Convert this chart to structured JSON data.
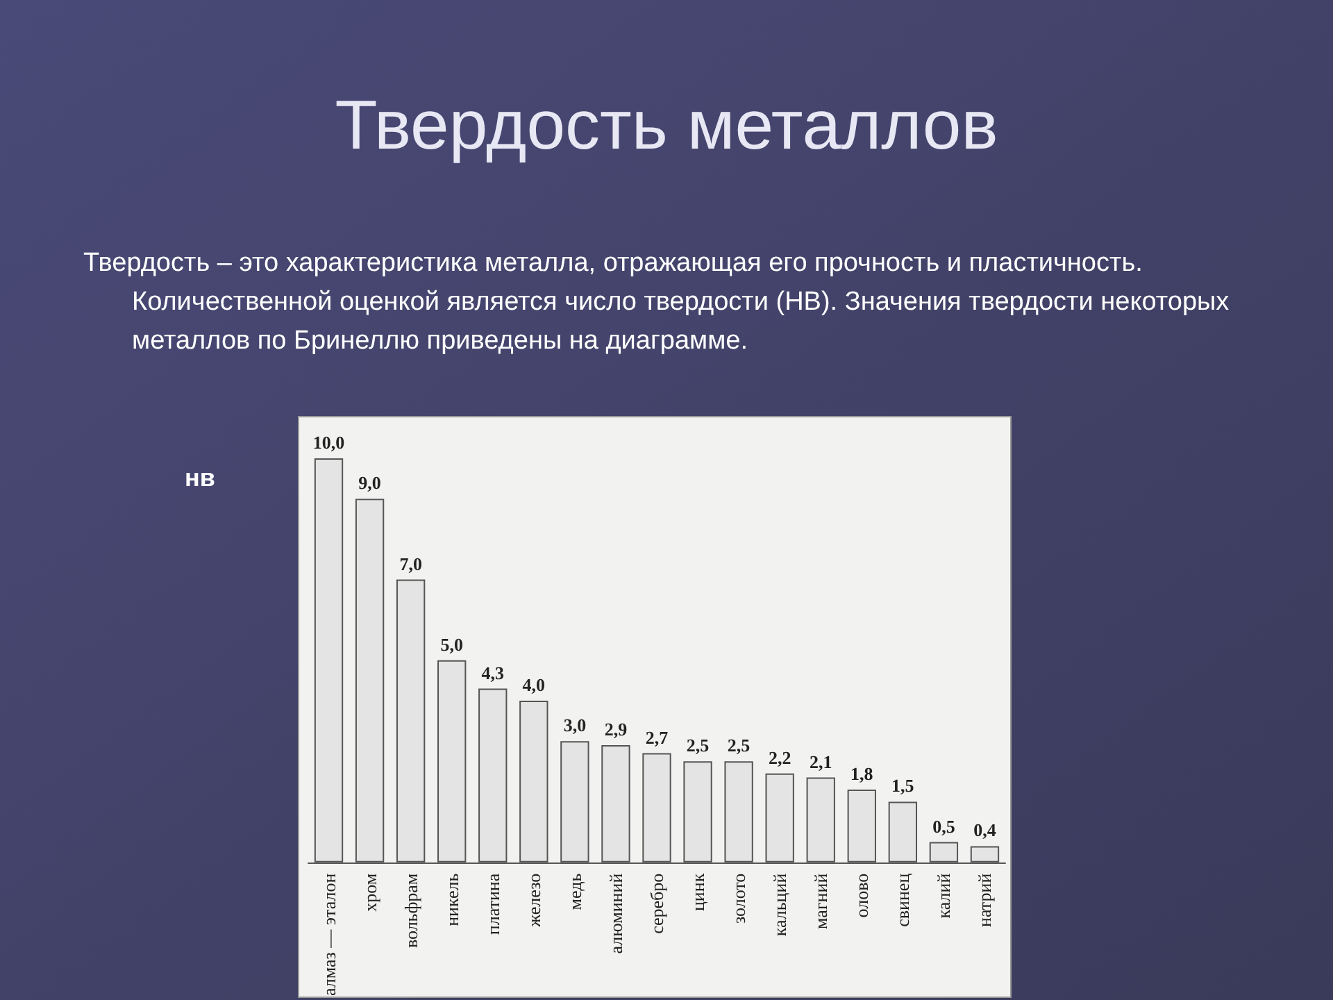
{
  "chart_data": {
    "type": "bar",
    "title": "Твердость металлов",
    "subtitle": "Твердость – это характеристика металла, отражающая его прочность и пластичность. Количественной оценкой является число твердости (НВ). Значения твердости некоторых металлов по Бринеллю приведены на диаграмме.",
    "ylabel": "нв",
    "categories": [
      "алмаз — эталон",
      "хром",
      "вольфрам",
      "никель",
      "платина",
      "железо",
      "медь",
      "алюминий",
      "серебро",
      "цинк",
      "золото",
      "кальций",
      "магний",
      "олово",
      "свинец",
      "калий",
      "натрий"
    ],
    "values": [
      10.0,
      9.0,
      7.0,
      5.0,
      4.3,
      4.0,
      3.0,
      2.9,
      2.7,
      2.5,
      2.5,
      2.2,
      2.1,
      1.8,
      1.5,
      0.5,
      0.4
    ],
    "value_labels": [
      "10,0",
      "9,0",
      "7,0",
      "5,0",
      "4,3",
      "4,0",
      "3,0",
      "2,9",
      "2,7",
      "2,5",
      "2,5",
      "2,2",
      "2,1",
      "1,8",
      "1,5",
      "0,5",
      "0,4"
    ],
    "color": "#e4e4e4",
    "grid": false
  }
}
